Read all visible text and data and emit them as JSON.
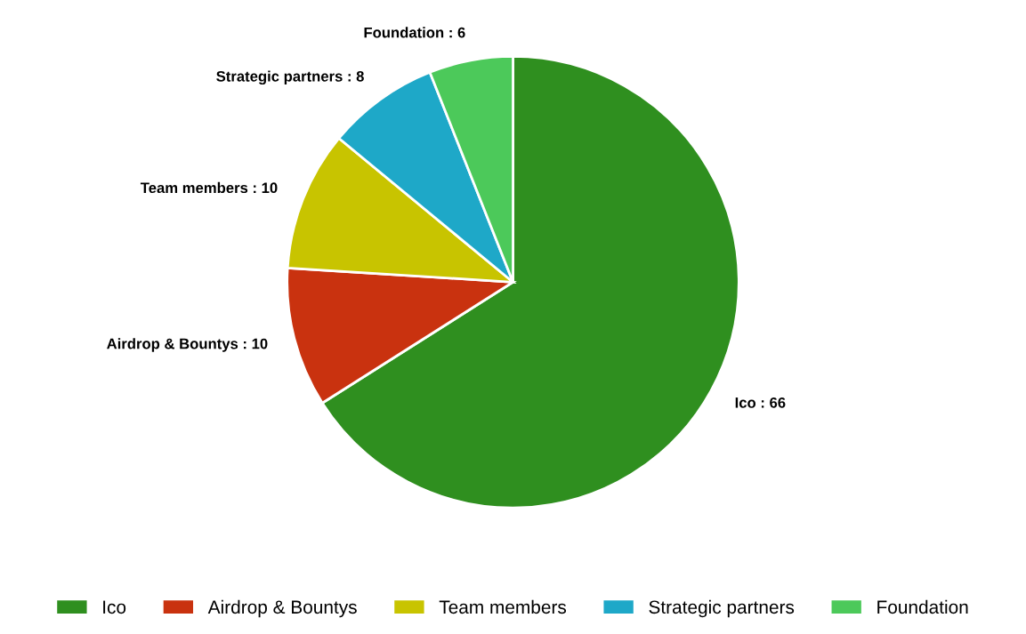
{
  "chart_data": {
    "type": "pie",
    "categories": [
      "Ico",
      "Airdrop & Bountys",
      "Team members",
      "Strategic partners",
      "Foundation"
    ],
    "values": [
      66,
      10,
      10,
      8,
      6
    ],
    "colors": [
      "#2f8f1f",
      "#c9320f",
      "#c8c400",
      "#1ea8c8",
      "#4cc95a"
    ],
    "value_labels": [
      "Ico : 66",
      "Airdrop & Bountys : 10",
      "Team members : 10",
      "Strategic partners : 8",
      "Foundation : 6"
    ],
    "legend": "bottom"
  }
}
